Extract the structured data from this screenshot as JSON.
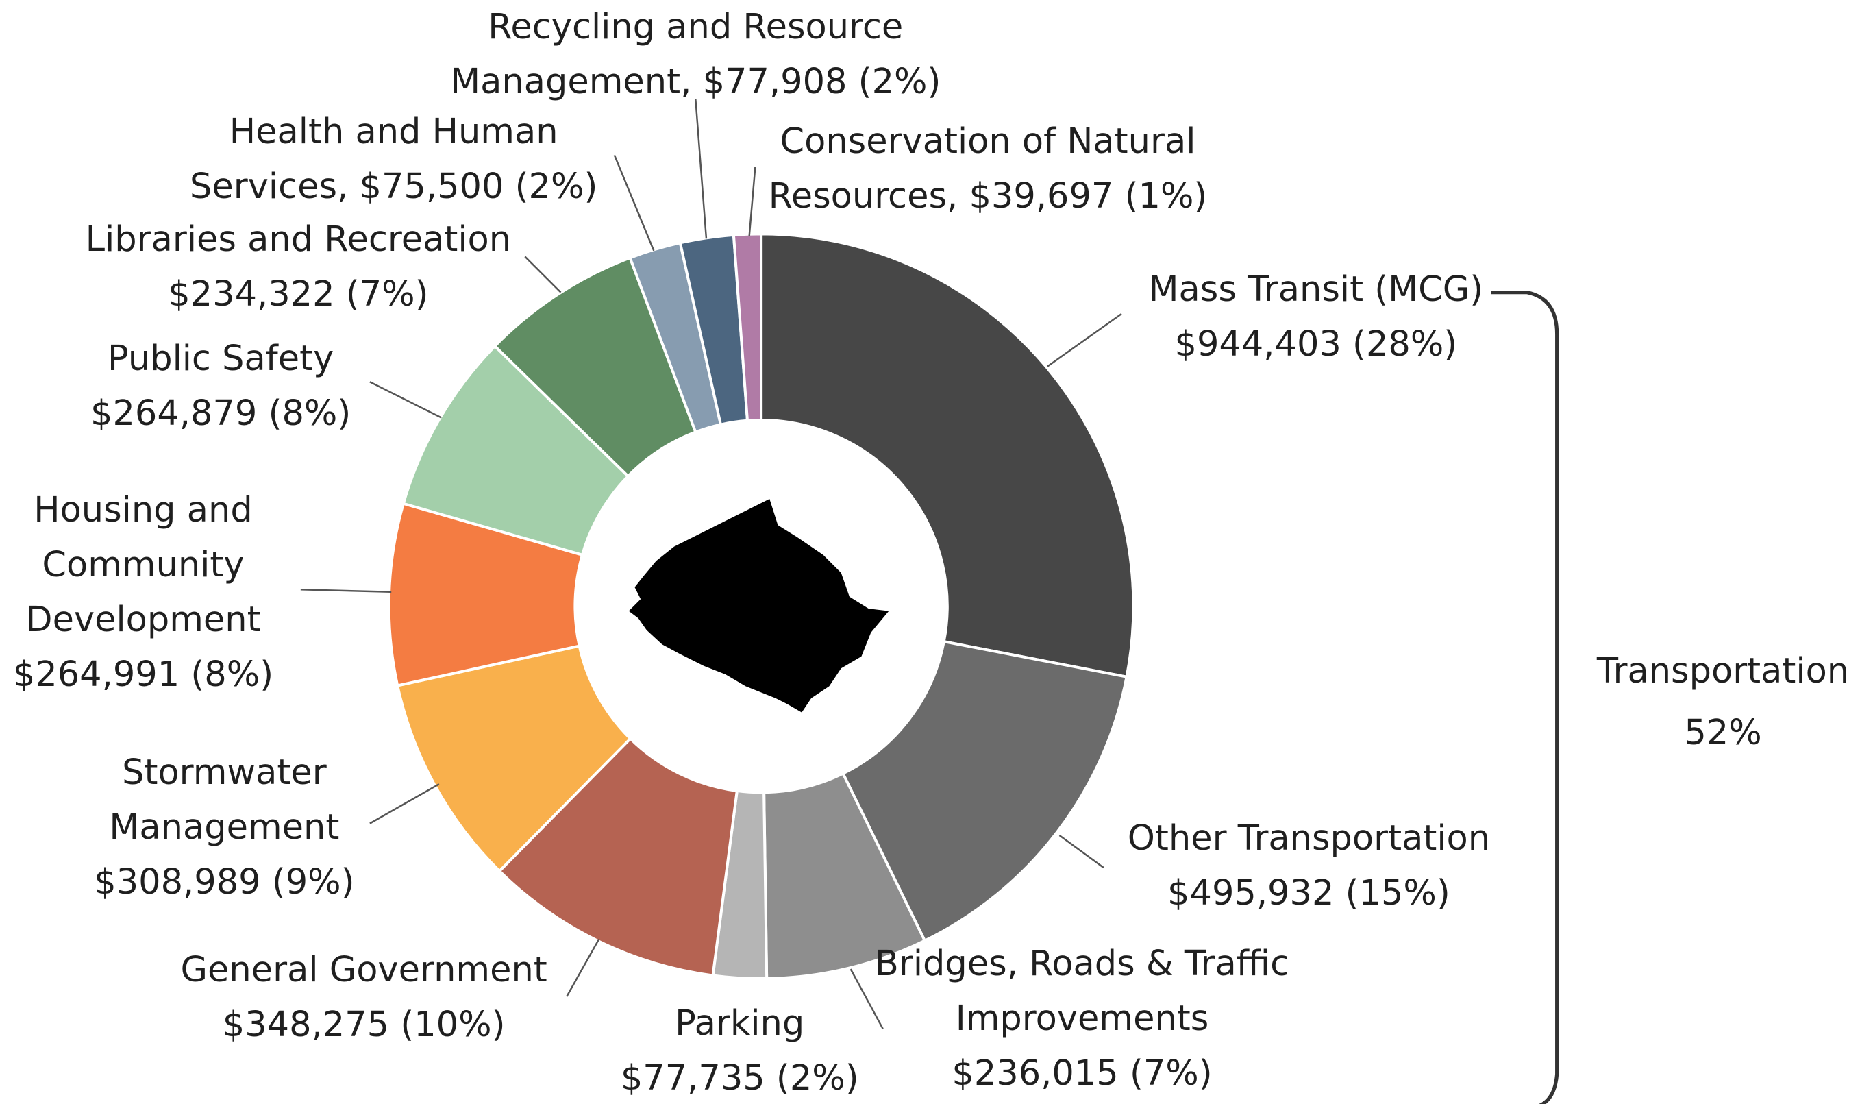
{
  "chart_data": {
    "type": "donut",
    "categories": [
      "Mass Transit (MCG)",
      "Other Transportation",
      "Bridges, Roads & Traffic Improvements",
      "Parking",
      "General Government",
      "Stormwater Management",
      "Housing and Community Development",
      "Public Safety",
      "Libraries and Recreation",
      "Health and Human Services",
      "Recycling and Resource Management",
      "Conservation of Natural Resources"
    ],
    "values": [
      944403,
      495932,
      236015,
      77735,
      348275,
      308989,
      264991,
      264879,
      234322,
      75500,
      77908,
      39697
    ],
    "value_labels": [
      "$944,403 (28%)",
      "$495,932 (15%)",
      "$236,015 (7%)",
      "$77,735 (2%)",
      "$348,275 (10%)",
      "$308,989 (9%)",
      "$264,991 (8%)",
      "$264,879 (8%)",
      "$234,322 (7%)",
      "$75,500 (2%)",
      "$77,908 (2%)",
      "$39,697 (1%)"
    ],
    "colors": [
      "#474747",
      "#6b6b6b",
      "#8e8e8e",
      "#b5b5b5",
      "#b56352",
      "#f9b04c",
      "#f47c42",
      "#a3cfaa",
      "#608d63",
      "#879cb0",
      "#4c6680",
      "#b07ba6"
    ],
    "group": {
      "label": "Transportation",
      "value": 52,
      "value_label": "52%"
    }
  }
}
